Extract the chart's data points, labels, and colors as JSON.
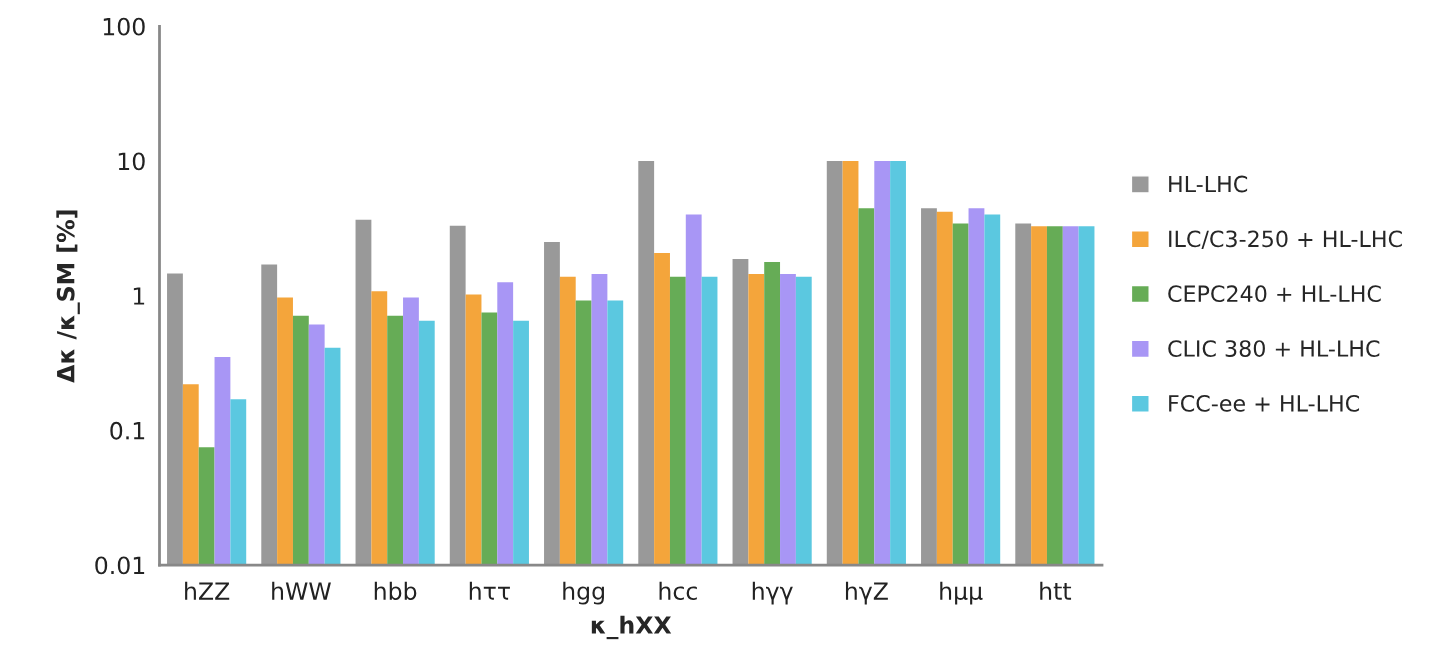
{
  "chart_data": {
    "type": "bar",
    "xlabel": "κ_hXX",
    "ylabel": "Δκ /κ_SM [%]",
    "categories": [
      "hZZ",
      "hWW",
      "hbb",
      "hττ",
      "hgg",
      "hcc",
      "hγγ",
      "hγZ",
      "hμμ",
      "htt"
    ],
    "series": [
      {
        "name": "HL-LHC",
        "color": "#999999",
        "values": [
          1.46,
          1.7,
          3.66,
          3.3,
          2.5,
          10,
          1.87,
          10,
          4.45,
          3.44
        ]
      },
      {
        "name": "ILC/C3-250 + HL-LHC",
        "color": "#f4a53b",
        "values": [
          0.22,
          0.97,
          1.08,
          1.02,
          1.38,
          2.07,
          1.45,
          10,
          4.2,
          3.28
        ]
      },
      {
        "name": "CEPC240 + HL-LHC",
        "color": "#66ac56",
        "values": [
          0.075,
          0.71,
          0.71,
          0.75,
          0.92,
          1.38,
          1.78,
          4.45,
          3.44,
          3.28
        ]
      },
      {
        "name": "CLIC 380 + HL-LHC",
        "color": "#a896f5",
        "values": [
          0.35,
          0.61,
          0.97,
          1.26,
          1.45,
          4.0,
          1.45,
          10,
          4.45,
          3.28
        ]
      },
      {
        "name": "FCC-ee + HL-LHC",
        "color": "#5bc8e0",
        "values": [
          0.17,
          0.41,
          0.65,
          0.65,
          0.92,
          1.38,
          1.38,
          10,
          4.0,
          3.28
        ]
      }
    ],
    "log": "y",
    "ylim": [
      0.01,
      100
    ],
    "yticks": [
      0.01,
      0.1,
      1,
      10,
      100
    ],
    "grid": false,
    "legend": "right"
  }
}
